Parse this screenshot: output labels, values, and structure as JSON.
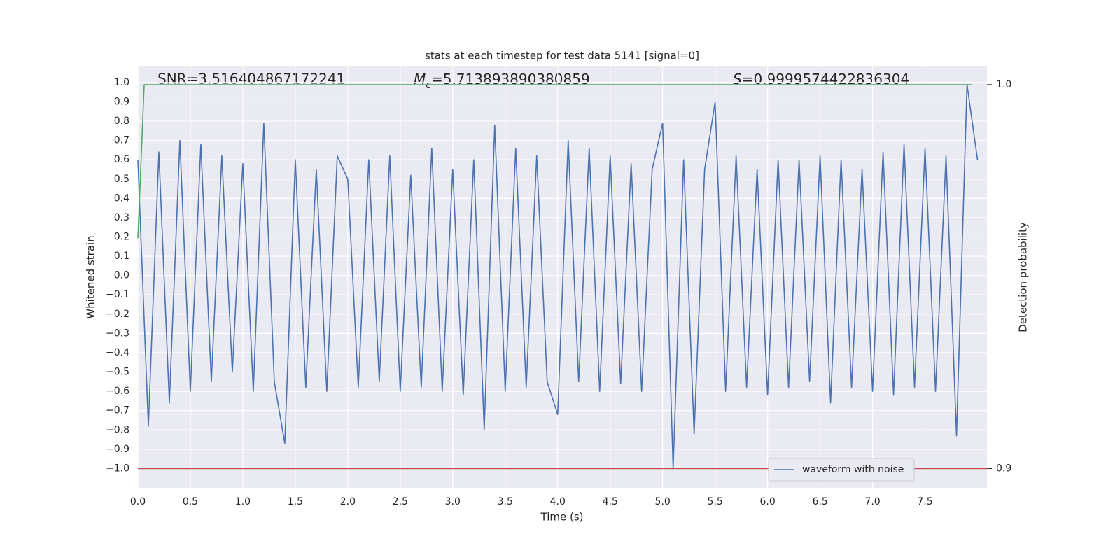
{
  "chart_data": {
    "type": "line",
    "title": "stats at each timestep for test data 5141 [signal=0]",
    "x_label": "Time (s)",
    "y_label": "Whitened strain",
    "y2_label": "Detection probability",
    "annotations": [
      {
        "text": "SNR=3.516404867172241"
      },
      {
        "symbol": "M",
        "subscript": "c",
        "text": "=5.713893890380859"
      },
      {
        "symbol": "S",
        "text": "=0.9999574422836304"
      }
    ],
    "xlim": [
      0,
      8.09
    ],
    "xticks": [
      {
        "value": 0,
        "label": "0.0"
      },
      {
        "value": 0.5,
        "label": "0.5"
      },
      {
        "value": 1,
        "label": "1.0"
      },
      {
        "value": 1.5,
        "label": "1.5"
      },
      {
        "value": 2,
        "label": "2.0"
      },
      {
        "value": 2.5,
        "label": "2.5"
      },
      {
        "value": 3,
        "label": "3.0"
      },
      {
        "value": 3.5,
        "label": "3.5"
      },
      {
        "value": 4,
        "label": "4.0"
      },
      {
        "value": 4.5,
        "label": "4.5"
      },
      {
        "value": 5,
        "label": "5.0"
      },
      {
        "value": 5.5,
        "label": "5.5"
      },
      {
        "value": 6,
        "label": "6.0"
      },
      {
        "value": 6.5,
        "label": "6.5"
      },
      {
        "value": 7,
        "label": "7.0"
      },
      {
        "value": 7.5,
        "label": "7.5"
      }
    ],
    "ylim": [
      -1.1,
      1.083
    ],
    "yticks": [
      {
        "value": -1,
        "label": "−1.0"
      },
      {
        "value": -0.9,
        "label": "−0.9"
      },
      {
        "value": -0.8,
        "label": "−0.8"
      },
      {
        "value": -0.7,
        "label": "−0.7"
      },
      {
        "value": -0.6,
        "label": "−0.6"
      },
      {
        "value": -0.5,
        "label": "−0.5"
      },
      {
        "value": -0.4,
        "label": "−0.4"
      },
      {
        "value": -0.3,
        "label": "−0.3"
      },
      {
        "value": -0.2,
        "label": "−0.2"
      },
      {
        "value": -0.1,
        "label": "−0.1"
      },
      {
        "value": 0,
        "label": "0.0"
      },
      {
        "value": 0.1,
        "label": "0.1"
      },
      {
        "value": 0.2,
        "label": "0.2"
      },
      {
        "value": 0.3,
        "label": "0.3"
      },
      {
        "value": 0.4,
        "label": "0.4"
      },
      {
        "value": 0.5,
        "label": "0.5"
      },
      {
        "value": 0.6,
        "label": "0.6"
      },
      {
        "value": 0.7,
        "label": "0.7"
      },
      {
        "value": 0.8,
        "label": "0.8"
      },
      {
        "value": 0.9,
        "label": "0.9"
      },
      {
        "value": 1,
        "label": "1.0"
      }
    ],
    "y2lim": [
      0.895,
      1.0047
    ],
    "y2ticks": [
      0.9,
      {
        "value": 1,
        "label": "1.0"
      }
    ],
    "grid": true,
    "legend": "lower right",
    "series": [
      {
        "name": "waveform with noise",
        "color": "#4c72b0",
        "x": [
          0.0,
          0.1,
          0.2,
          0.3,
          0.4,
          0.5,
          0.6,
          0.7,
          0.8,
          0.9,
          1.0,
          1.1,
          1.2,
          1.3,
          1.4,
          1.5,
          1.6,
          1.7,
          1.8,
          1.9,
          2.0,
          2.1,
          2.2,
          2.3,
          2.4,
          2.5,
          2.6,
          2.7,
          2.8,
          2.9,
          3.0,
          3.1,
          3.2,
          3.3,
          3.4,
          3.5,
          3.6,
          3.7,
          3.8,
          3.9,
          4.0,
          4.1,
          4.2,
          4.3,
          4.4,
          4.5,
          4.6,
          4.7,
          4.8,
          4.9,
          5.0,
          5.1,
          5.2,
          5.3,
          5.4,
          5.5,
          5.6,
          5.7,
          5.8,
          5.9,
          6.0,
          6.1,
          6.2,
          6.3,
          6.4,
          6.5,
          6.6,
          6.7,
          6.8,
          6.9,
          7.0,
          7.1,
          7.2,
          7.3,
          7.4,
          7.5,
          7.6,
          7.7,
          7.8,
          7.9,
          8.0
        ],
        "values": [
          0.6,
          -0.78,
          0.64,
          -0.66,
          0.7,
          -0.6,
          0.68,
          -0.55,
          0.62,
          -0.5,
          0.58,
          -0.6,
          0.79,
          -0.55,
          -0.87,
          0.6,
          -0.58,
          0.55,
          -0.6,
          0.62,
          0.5,
          -0.58,
          0.6,
          -0.55,
          0.62,
          -0.6,
          0.52,
          -0.58,
          0.66,
          -0.6,
          0.55,
          -0.62,
          0.6,
          -0.8,
          0.78,
          -0.6,
          0.66,
          -0.58,
          0.62,
          -0.55,
          -0.72,
          0.7,
          -0.55,
          0.66,
          -0.6,
          0.62,
          -0.56,
          0.58,
          -0.6,
          0.55,
          0.79,
          -1.0,
          0.6,
          -0.82,
          0.55,
          0.9,
          -0.6,
          0.62,
          -0.58,
          0.55,
          -0.62,
          0.6,
          -0.58,
          0.6,
          -0.55,
          0.62,
          -0.66,
          0.6,
          -0.58,
          0.55,
          -0.6,
          0.64,
          -0.62,
          0.68,
          -0.58,
          0.66,
          -0.6,
          0.62,
          -0.83,
          0.99,
          0.6
        ]
      },
      {
        "color": "#55a868",
        "axis": "y2",
        "x": [
          0,
          0.06,
          7.95
        ],
        "values": [
          0.96,
          0.99996,
          0.99996
        ]
      },
      {
        "color": "#c44e52",
        "x": [
          0,
          8.09
        ],
        "values": [
          -1.0,
          -1.0
        ]
      }
    ]
  }
}
